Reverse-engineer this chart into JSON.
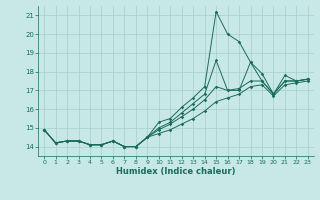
{
  "title": "",
  "xlabel": "Humidex (Indice chaleur)",
  "background_color": "#c8e8e8",
  "grid_color": "#a8cccc",
  "line_color": "#1a6b5a",
  "xlim": [
    -0.5,
    23.5
  ],
  "ylim": [
    13.5,
    21.5
  ],
  "yticks": [
    14,
    15,
    16,
    17,
    18,
    19,
    20,
    21
  ],
  "xticks": [
    0,
    1,
    2,
    3,
    4,
    5,
    6,
    7,
    8,
    9,
    10,
    11,
    12,
    13,
    14,
    15,
    16,
    17,
    18,
    19,
    20,
    21,
    22,
    23
  ],
  "line1_x": [
    0,
    1,
    2,
    3,
    4,
    5,
    6,
    7,
    8,
    9,
    10,
    11,
    12,
    13,
    14,
    15,
    16,
    17,
    18,
    19,
    20,
    21,
    22,
    23
  ],
  "line1_y": [
    14.9,
    14.2,
    14.3,
    14.3,
    14.1,
    14.1,
    14.3,
    14.0,
    14.0,
    14.5,
    15.3,
    15.5,
    16.1,
    16.6,
    17.2,
    21.2,
    20.0,
    19.6,
    18.5,
    17.9,
    16.8,
    17.8,
    17.5,
    17.6
  ],
  "line2_x": [
    0,
    1,
    2,
    3,
    4,
    5,
    6,
    7,
    8,
    9,
    10,
    11,
    12,
    13,
    14,
    15,
    16,
    17,
    18,
    19,
    20,
    21,
    22,
    23
  ],
  "line2_y": [
    14.9,
    14.2,
    14.3,
    14.3,
    14.1,
    14.1,
    14.3,
    14.0,
    14.0,
    14.5,
    15.0,
    15.3,
    15.8,
    16.3,
    16.8,
    18.6,
    17.0,
    17.0,
    18.5,
    17.5,
    16.8,
    17.5,
    17.5,
    17.6
  ],
  "line3_x": [
    0,
    1,
    2,
    3,
    4,
    5,
    6,
    7,
    8,
    9,
    10,
    11,
    12,
    13,
    14,
    15,
    16,
    17,
    18,
    19,
    20,
    21,
    22,
    23
  ],
  "line3_y": [
    14.9,
    14.2,
    14.3,
    14.3,
    14.1,
    14.1,
    14.3,
    14.0,
    14.0,
    14.5,
    14.9,
    15.2,
    15.6,
    16.0,
    16.5,
    17.2,
    17.0,
    17.1,
    17.5,
    17.5,
    16.8,
    17.5,
    17.5,
    17.6
  ],
  "line4_x": [
    0,
    1,
    2,
    3,
    4,
    5,
    6,
    7,
    8,
    9,
    10,
    11,
    12,
    13,
    14,
    15,
    16,
    17,
    18,
    19,
    20,
    21,
    22,
    23
  ],
  "line4_y": [
    14.9,
    14.2,
    14.3,
    14.3,
    14.1,
    14.1,
    14.3,
    14.0,
    14.0,
    14.5,
    14.7,
    14.9,
    15.2,
    15.5,
    15.9,
    16.4,
    16.6,
    16.8,
    17.2,
    17.3,
    16.7,
    17.3,
    17.4,
    17.5
  ]
}
